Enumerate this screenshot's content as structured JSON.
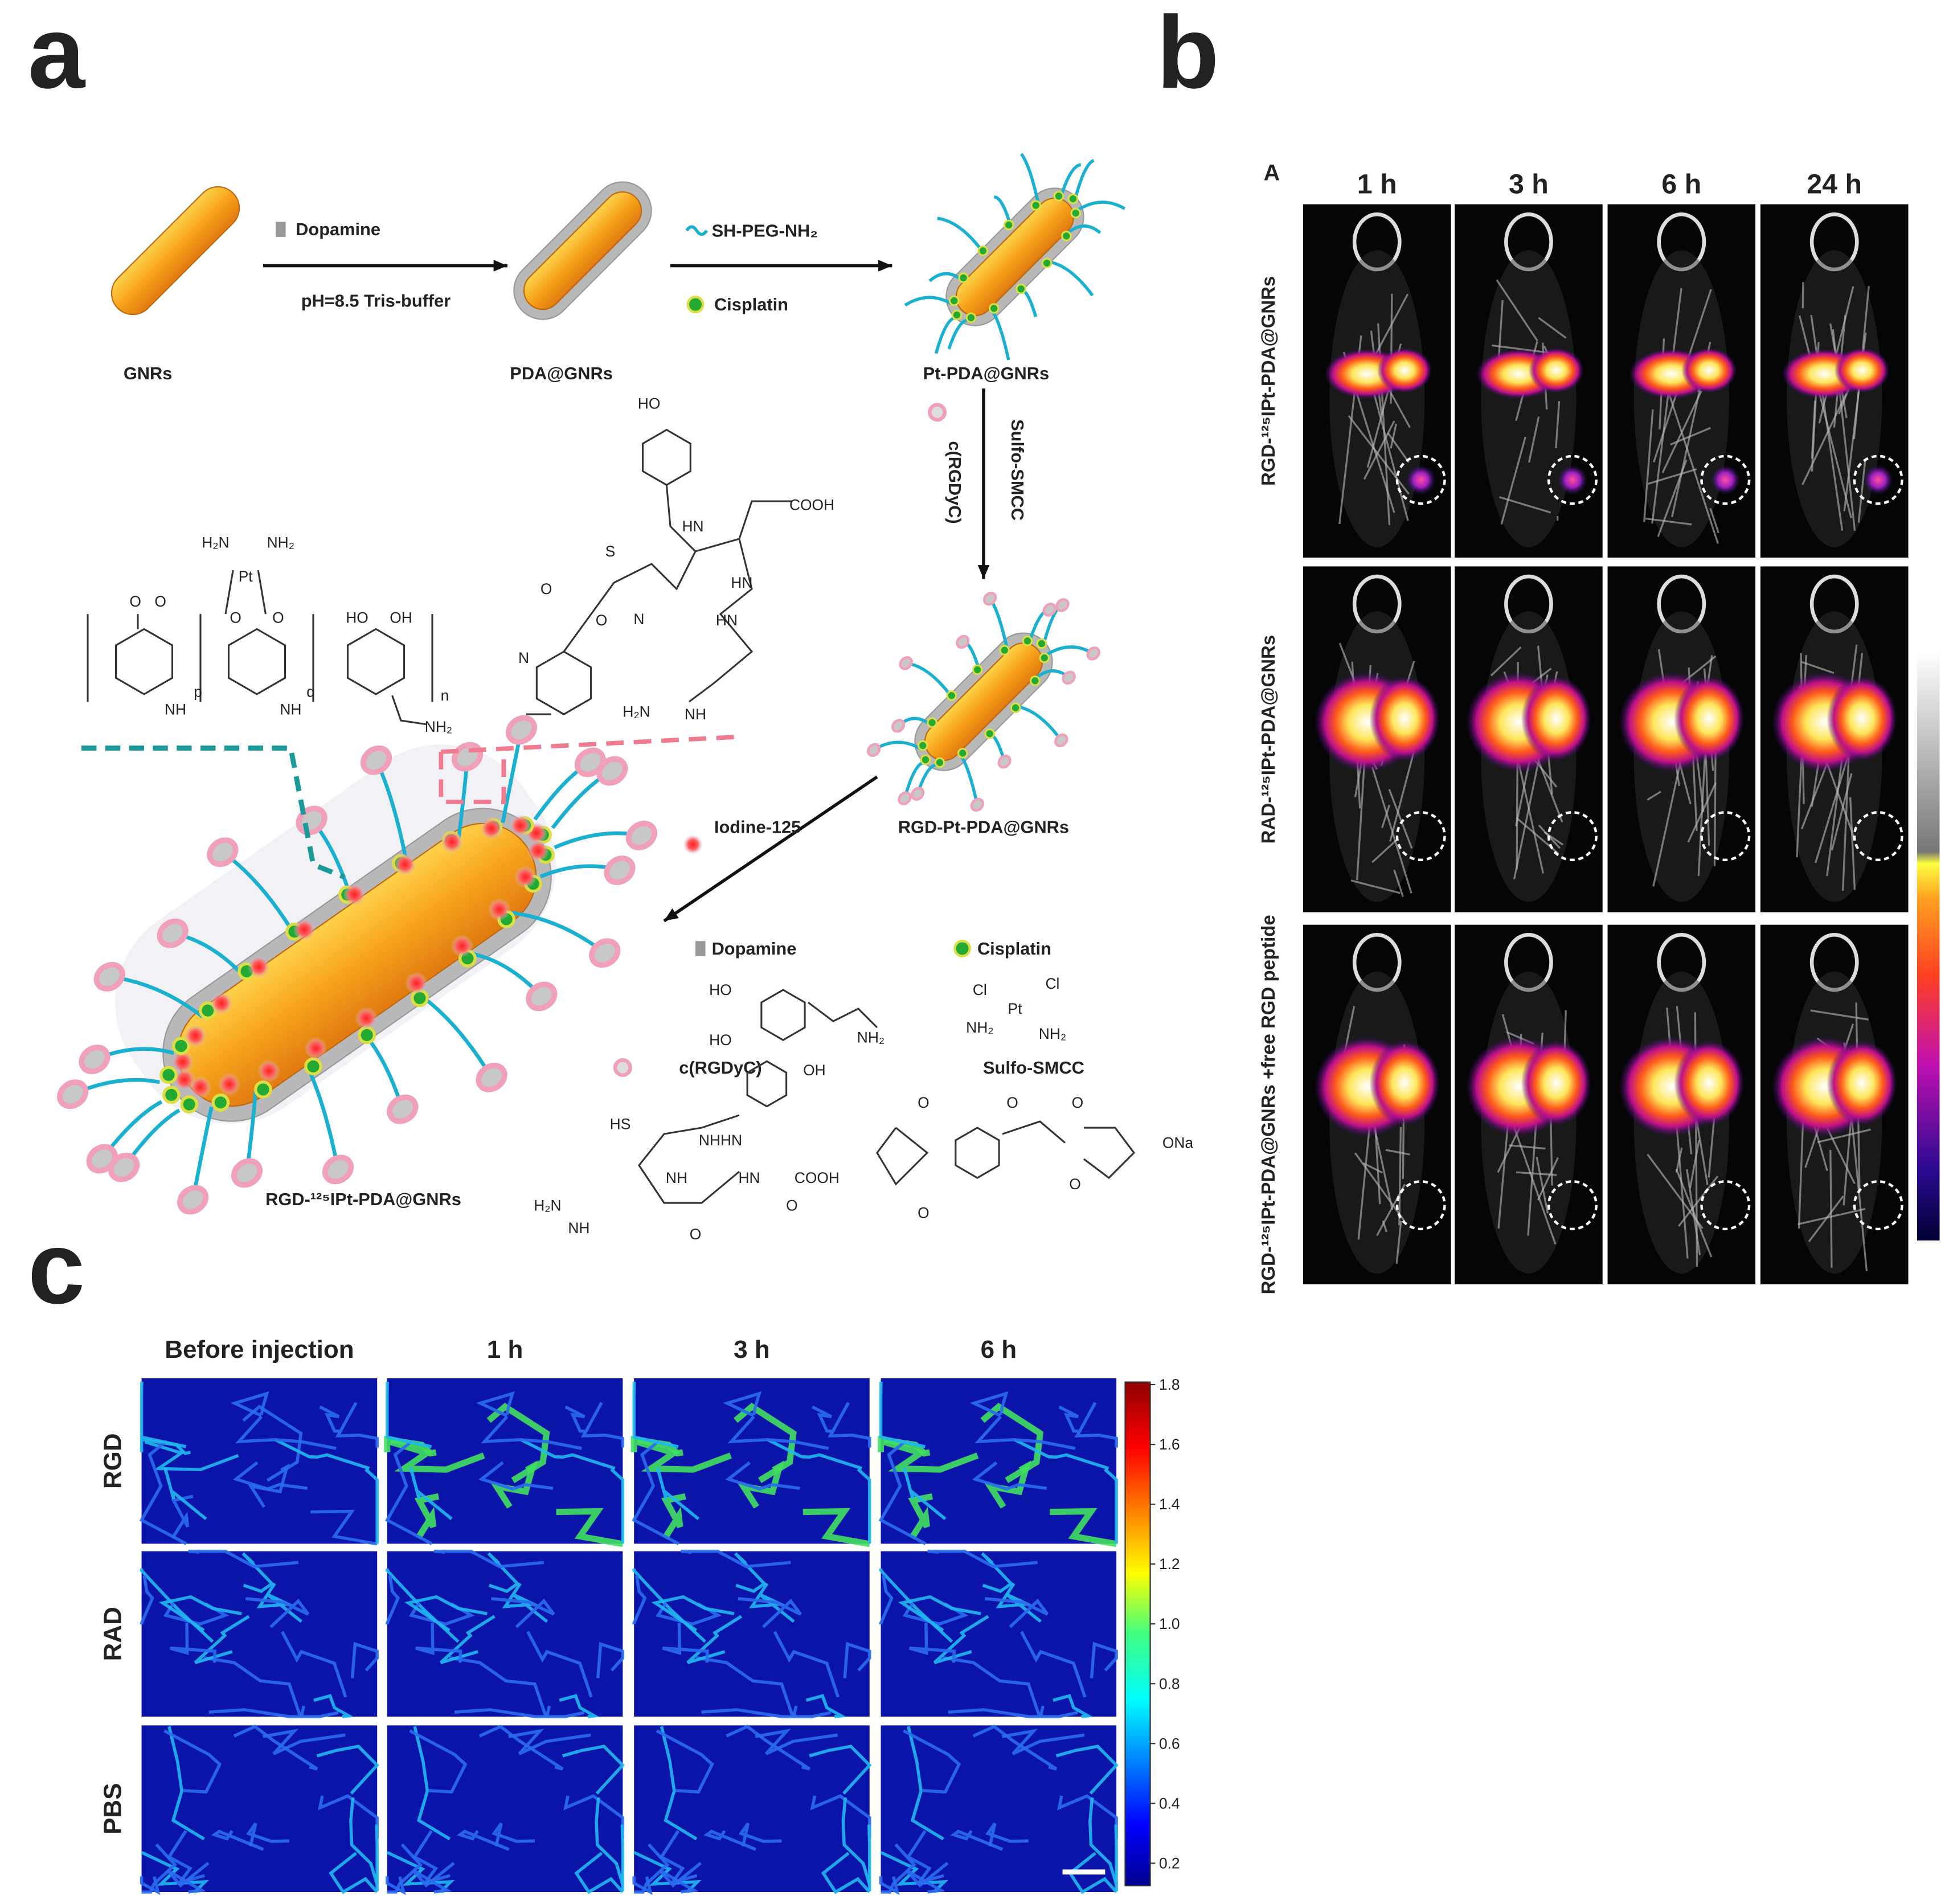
{
  "panel_labels": [
    "a",
    "b",
    "c"
  ],
  "panel_a": {
    "scheme": {
      "step1_reagent": "Dopamine",
      "step1_condition": "pH=8.5 Tris-buffer",
      "step2_reagent": "SH-PEG-NH₂",
      "step2_drug": "Cisplatin",
      "step3_reagent": "c(RGDyC)",
      "step3_linker": "Sulfo-SMCC",
      "step4_reagent": "Iodine-125"
    },
    "products": [
      "GNRs",
      "PDA@GNRs",
      "Pt-PDA@GNRs",
      "RGD-Pt-PDA@GNRs",
      "RGD-¹²⁵IPt-PDA@GNRs"
    ],
    "polymer_atoms": [
      "H₂N",
      "NH₂",
      "Pt",
      "O",
      "O",
      "O",
      "O",
      "NH",
      "NH",
      "HO",
      "OH",
      "NH₂",
      "p",
      "q",
      "n"
    ],
    "peptide_atoms": [
      "HO",
      "COOH",
      "HN",
      "HN",
      "HN",
      "S",
      "N",
      "O",
      "O",
      "N",
      "H₂N",
      "NH"
    ],
    "legend": [
      {
        "name": "Dopamine",
        "atoms": [
          "HO",
          "HO",
          "NH₂"
        ]
      },
      {
        "name": "Cisplatin",
        "atoms": [
          "Cl",
          "Cl",
          "Pt",
          "NH₂",
          "NH₂"
        ]
      },
      {
        "name": "c(RGDyC)",
        "atoms": [
          "OH",
          "HS",
          "NHHN",
          "NH",
          "HN",
          "COOH",
          "H₂N",
          "NH",
          "O",
          "O"
        ]
      },
      {
        "name": "Sulfo-SMCC",
        "atoms": [
          "O",
          "O",
          "O",
          "O",
          "O",
          "ONa"
        ]
      }
    ]
  },
  "panel_b": {
    "subpanel": "A",
    "columns": [
      "1 h",
      "3 h",
      "6 h",
      "24 h"
    ],
    "rows": [
      "RGD-¹²⁵IPt-PDA@GNRs",
      "RAD-¹²⁵IPt-PDA@GNRs",
      "RGD-¹²⁵IPt-PDA@GNRs +free RGD peptide"
    ]
  },
  "panel_c": {
    "columns": [
      "Before injection",
      "1 h",
      "3 h",
      "6 h"
    ],
    "rows": [
      "RGD",
      "RAD",
      "PBS"
    ],
    "colorbar_ticks": [
      "1.8",
      "1.6",
      "1.4",
      "1.2",
      "1.0",
      "0.8",
      "0.6",
      "0.4",
      "0.2"
    ]
  }
}
